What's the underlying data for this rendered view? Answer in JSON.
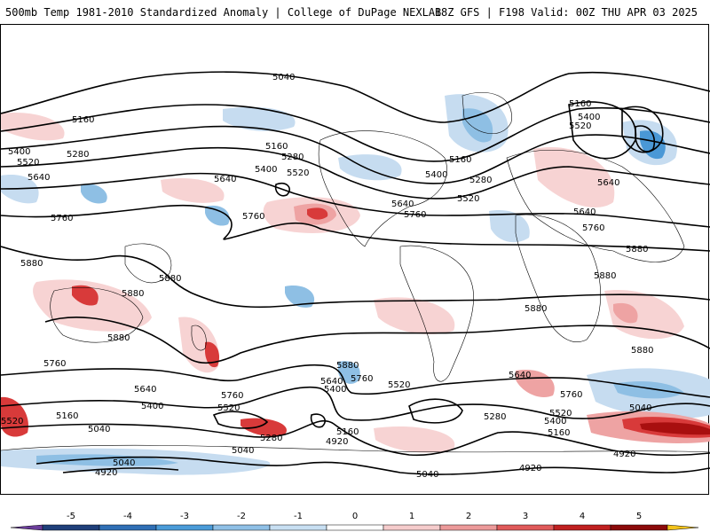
{
  "header": {
    "left": "500mb Temp 1981-2010 Standardized Anomaly | College of DuPage NEXLAB",
    "right": "18Z GFS | F198 Valid: 00Z THU APR 03 2025"
  },
  "contour_labels": [
    "5040",
    "5160",
    "5280",
    "5400",
    "5520",
    "5640",
    "5760",
    "5880",
    "4920"
  ],
  "colorbar": {
    "ticks": [
      "-5",
      "-4",
      "-3",
      "-2",
      "-1",
      "0",
      "1",
      "2",
      "3",
      "4",
      "5"
    ],
    "colors": [
      "#6a3d9a",
      "#1f3f7a",
      "#2f6fb5",
      "#4a9bd8",
      "#8fc0e6",
      "#c8dff2",
      "#ffffff",
      "#f5cccc",
      "#ec9a9a",
      "#e05a5a",
      "#c02020",
      "#8b0a0a",
      "#f2c21a"
    ]
  },
  "map": {
    "anomaly_colors": {
      "cold_light": "#c6dcf0",
      "cold_mid": "#8ebfe4",
      "cold_strong": "#4a98d6",
      "warm_light": "#f7d3d3",
      "warm_mid": "#eea3a3",
      "warm_strong": "#d83a3a",
      "warm_extreme": "#a80f0f"
    }
  }
}
